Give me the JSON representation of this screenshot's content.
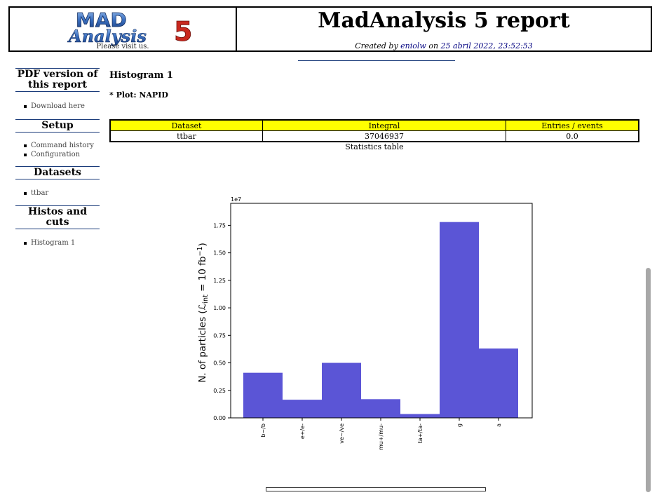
{
  "header": {
    "logo_text_top": "MAD",
    "logo_text_bottom": "Analysis",
    "logo_number": "5",
    "visit_text": "Please visit us.",
    "title": "MadAnalysis 5 report",
    "created_prefix": "Created by ",
    "author": "eniolw",
    "created_mid": " on ",
    "date": "25 abril 2022, 23:52:53"
  },
  "sidebar": {
    "sections": [
      {
        "title": "PDF version of this report",
        "items": [
          "Download here"
        ]
      },
      {
        "title": "Setup",
        "items": [
          "Command history",
          "Configuration"
        ]
      },
      {
        "title": "Datasets",
        "items": [
          "ttbar"
        ]
      },
      {
        "title": "Histos and cuts",
        "items": [
          "Histogram 1"
        ]
      }
    ]
  },
  "main": {
    "heading": "Histogram 1",
    "plot_label": "* Plot: NAPID",
    "table": {
      "headers": [
        "Dataset",
        "Integral",
        "Entries / events"
      ],
      "rows": [
        [
          "ttbar",
          "37046937",
          "0.0"
        ]
      ],
      "caption": "Statistics table"
    }
  },
  "colors": {
    "bar": "#5b55d6",
    "table_header": "#ffff00",
    "link": "#000080"
  },
  "chart_data": {
    "type": "bar",
    "categories": [
      "b~/b",
      "e+/e-",
      "ve~/ve",
      "mu+/mu-",
      "ta+/ta-",
      "g",
      "a"
    ],
    "values": [
      4100000.0,
      1650000.0,
      5000000.0,
      1700000.0,
      350000.0,
      17800000.0,
      6300000.0
    ],
    "ylabel": "N. of particles (ℒ",
    "ylabel_sub": "int",
    "ylabel_rest": " = 10 fb",
    "ylabel_sup": "−1",
    "ylabel_end": ")",
    "scale_label": "1e7",
    "yticks": [
      0,
      0.25,
      0.5,
      0.75,
      1.0,
      1.25,
      1.5,
      1.75
    ],
    "ytick_labels": [
      "0.00",
      "0.25",
      "0.50",
      "0.75",
      "1.00",
      "1.25",
      "1.50",
      "1.75"
    ],
    "ylim": [
      0,
      1.95
    ],
    "grid": false
  }
}
